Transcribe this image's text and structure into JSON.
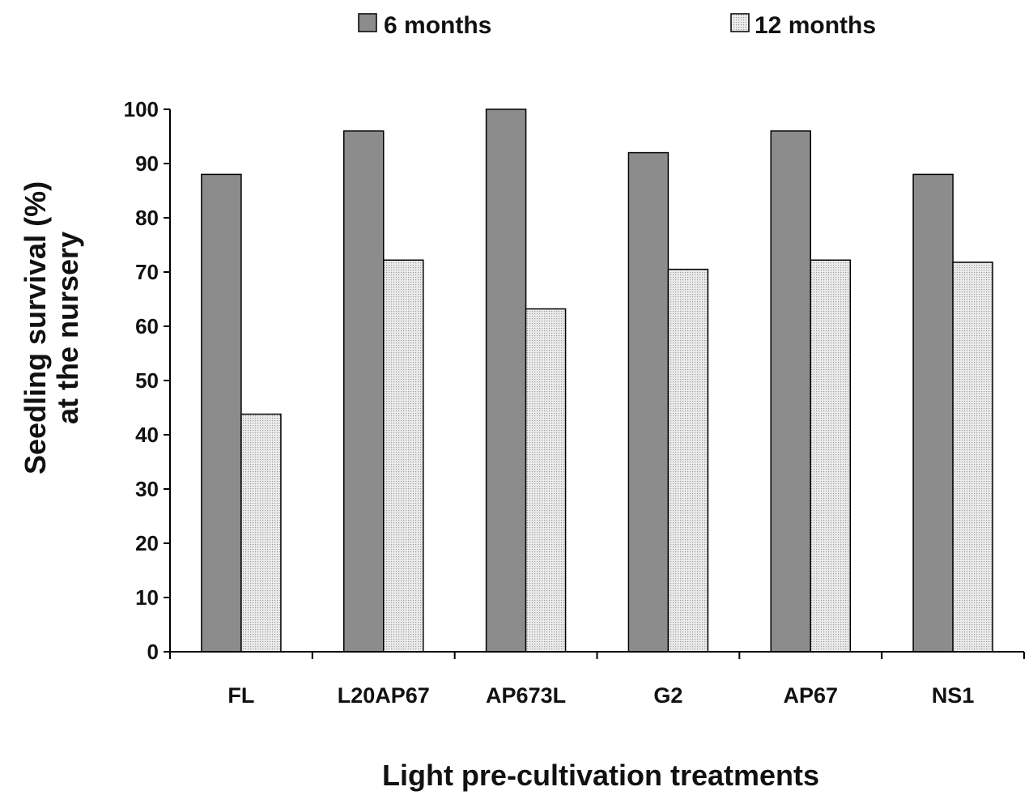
{
  "chart_data": {
    "type": "bar",
    "title": "",
    "xlabel": "Light pre-cultivation treatments",
    "ylabel_lines": [
      "Seedling survival (%)",
      "at the nursery"
    ],
    "categories": [
      "FL",
      "L20AP67",
      "AP673L",
      "G2",
      "AP67",
      "NS1"
    ],
    "series": [
      {
        "name": "6 months",
        "values": [
          88,
          96,
          100,
          92,
          96,
          88
        ],
        "color": "#8c8c8c",
        "pattern": "solid"
      },
      {
        "name": "12 months",
        "values": [
          43.8,
          72.2,
          63.2,
          70.5,
          72.2,
          71.8
        ],
        "color": "#e4e4e4",
        "pattern": "dotted"
      }
    ],
    "ylim": [
      0,
      100
    ],
    "yticks": [
      0,
      10,
      20,
      30,
      40,
      50,
      60,
      70,
      80,
      90,
      100
    ],
    "grid": false,
    "legend_position": "top"
  }
}
